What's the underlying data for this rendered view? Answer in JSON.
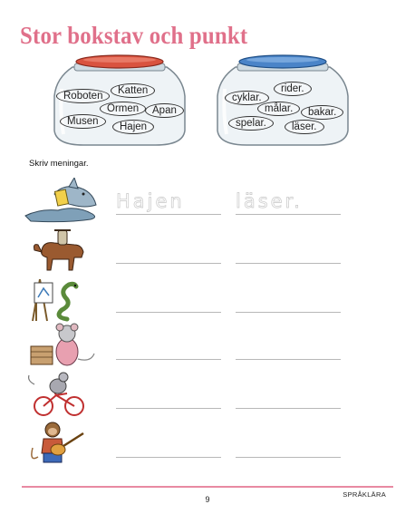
{
  "title": "Stor bokstav och punkt",
  "jars": {
    "left": {
      "lid_color": "#d9533f",
      "words": [
        "Roboten",
        "Katten",
        "Ormen",
        "Apan",
        "Musen",
        "Hajen"
      ]
    },
    "right": {
      "lid_color": "#4a84c8",
      "words": [
        "rider.",
        "cyklar.",
        "målar.",
        "bakar.",
        "spelar.",
        "läser."
      ]
    }
  },
  "instruction": "Skriv meningar.",
  "rows": [
    {
      "picture": "shark-reading-book",
      "answer_1": "Hajen",
      "answer_2": "läser."
    },
    {
      "picture": "cat-riding-horse",
      "answer_1": "",
      "answer_2": ""
    },
    {
      "picture": "snake-painting-easel",
      "answer_1": "",
      "answer_2": ""
    },
    {
      "picture": "mouse-baking",
      "answer_1": "",
      "answer_2": ""
    },
    {
      "picture": "mouse-riding-bicycle",
      "answer_1": "",
      "answer_2": ""
    },
    {
      "picture": "monkey-playing-guitar",
      "answer_1": "",
      "answer_2": ""
    }
  ],
  "footer": {
    "page_number": "9",
    "section": "SPRÅKLÄRA",
    "line_color": "#e88aa2"
  }
}
